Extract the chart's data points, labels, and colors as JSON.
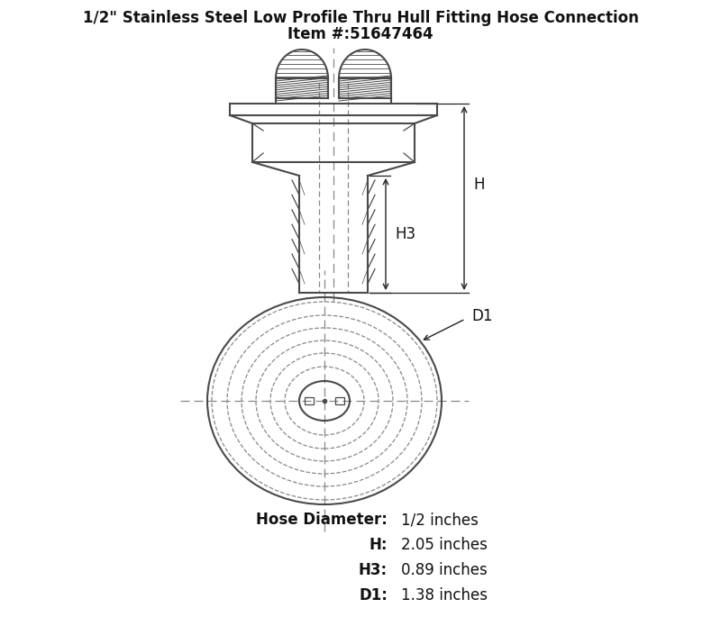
{
  "title_line1": "1/2\" Stainless Steel Low Profile Thru Hull Fitting Hose Connection",
  "title_line2": "Item #:51647464",
  "specs": [
    {
      "label": "Hose Diameter:",
      "value": "1/2 inches"
    },
    {
      "label": "H:",
      "value": "2.05 inches"
    },
    {
      "label": "H3:",
      "value": "0.89 inches"
    },
    {
      "label": "D1:",
      "value": "1.38 inches"
    }
  ],
  "line_color": "#4a4a4a",
  "dashed_color": "#888888",
  "bg_color": "#ffffff",
  "dim_color": "#222222",
  "figsize": [
    8.0,
    6.85
  ],
  "dpi": 100
}
